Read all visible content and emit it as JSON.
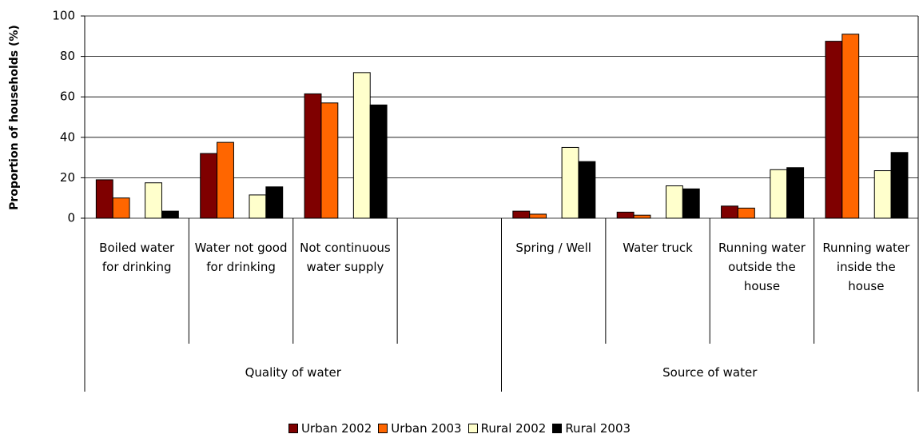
{
  "chart_data": {
    "type": "bar",
    "y_label": "Proportion of households (%)",
    "categories": [
      "Boiled water for drinking",
      "Water not good for drinking",
      "Not continuous water supply",
      null,
      "Spring / Well",
      "Water truck",
      "Running water outside the house",
      "Running water inside the house"
    ],
    "group_labels": [
      "Quality of water",
      "Source of water"
    ],
    "series": [
      {
        "name": "Urban 2002",
        "color": "#7f0000",
        "values": [
          19,
          32,
          61.5,
          null,
          3.5,
          3,
          6,
          87.5
        ]
      },
      {
        "name": "Urban 2003",
        "color": "#ff6600",
        "values": [
          10,
          37.5,
          57,
          null,
          2,
          1.5,
          5,
          91
        ]
      },
      {
        "name": "Rural 2002",
        "color": "#ffffcc",
        "values": [
          17.5,
          11.5,
          72,
          null,
          35,
          16,
          24,
          23.5
        ]
      },
      {
        "name": "Rural 2003",
        "color": "#000000",
        "values": [
          3.5,
          15.5,
          56,
          null,
          28,
          14.5,
          25,
          32.5
        ]
      }
    ],
    "ylim": [
      0,
      100
    ],
    "yticks": [
      0,
      20,
      40,
      60,
      80,
      100
    ],
    "grid": true
  }
}
